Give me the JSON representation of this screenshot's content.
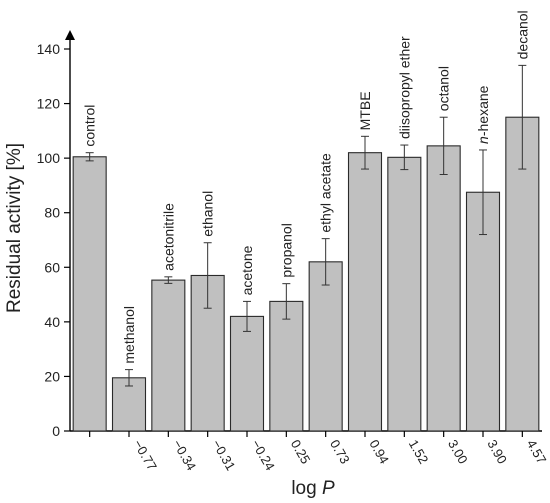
{
  "chart_data": {
    "type": "bar",
    "title": "",
    "xlabel": "log ",
    "xlabel_italic": "P",
    "ylabel": "Residual activity [%]",
    "ylim": [
      0,
      140
    ],
    "yticks": [
      0,
      20,
      40,
      60,
      80,
      100,
      120,
      140
    ],
    "grid": false,
    "legend": "none",
    "colors": {
      "bar_fill": "#c0c0c0",
      "bar_stroke": "#2a2a2a",
      "axis": "#000000"
    },
    "bars": [
      {
        "label": "control",
        "italic_prefix": "",
        "logP": "",
        "value": 100.5,
        "err": 1.5
      },
      {
        "label": "methanol",
        "italic_prefix": "",
        "logP": "−0.77",
        "value": 19.5,
        "err": 3.0
      },
      {
        "label": "acetonitrile",
        "italic_prefix": "",
        "logP": "−0.34",
        "value": 55.3,
        "err": 1.2
      },
      {
        "label": "ethanol",
        "italic_prefix": "",
        "logP": "−0.31",
        "value": 57.0,
        "err": 12.0
      },
      {
        "label": "acetone",
        "italic_prefix": "",
        "logP": "−0.24",
        "value": 42.0,
        "err": 5.5
      },
      {
        "label": "propanol",
        "italic_prefix": "",
        "logP": "0.25",
        "value": 47.5,
        "err": 6.5
      },
      {
        "label": "ethyl acetate",
        "italic_prefix": "",
        "logP": "0.73",
        "value": 62.0,
        "err": 8.5
      },
      {
        "label": "MTBE",
        "italic_prefix": "",
        "logP": "0.94",
        "value": 102.0,
        "err": 6.0
      },
      {
        "label": "diisopropyl ether",
        "italic_prefix": "",
        "logP": "1.52",
        "value": 100.3,
        "err": 4.5
      },
      {
        "label": "octanol",
        "italic_prefix": "",
        "logP": "3.00",
        "value": 104.5,
        "err": 10.5
      },
      {
        "label": "-hexane",
        "italic_prefix": "n",
        "logP": "3.90",
        "value": 87.5,
        "err": 15.5
      },
      {
        "label": "decanol",
        "italic_prefix": "",
        "logP": "4.57",
        "value": 115.0,
        "err": 19.0
      }
    ]
  }
}
